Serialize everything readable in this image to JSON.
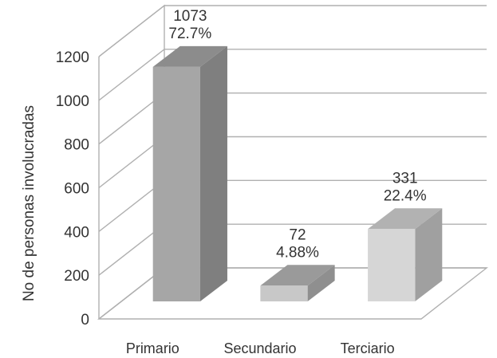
{
  "chart_data": {
    "type": "bar",
    "categories": [
      "Primario",
      "Secundario",
      "Terciario"
    ],
    "values": [
      1073,
      72,
      331
    ],
    "percent_labels": [
      "72.7%",
      "4.88%",
      "22.4%"
    ],
    "value_labels": [
      "1073",
      "72",
      "331"
    ],
    "ylabel": "No de personas involucradas",
    "xlabel": "",
    "ylim": [
      0,
      1200
    ],
    "yticks": [
      0,
      200,
      400,
      600,
      800,
      1000,
      1200
    ],
    "grid": true,
    "legend": "none",
    "style": "3d",
    "colors": {
      "bars": [
        "#a6a6a6",
        "#c8c8c8",
        "#d6d6d6"
      ],
      "bar_sides": [
        "#7f7f7f",
        "#8f8f8f",
        "#a0a0a0"
      ],
      "bar_tops": [
        "#8c8c8c",
        "#9a9a9a",
        "#b2b2b2"
      ],
      "grid": "#b0b0b0",
      "text": "#333333"
    }
  }
}
